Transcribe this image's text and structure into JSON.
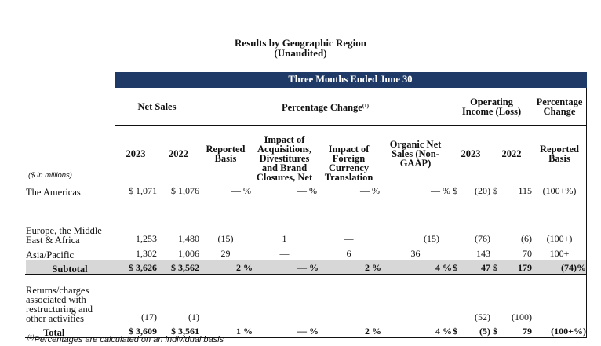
{
  "title": "Results by Geographic Region",
  "subtitle": "(Unaudited)",
  "band_header": "Three Months Ended June 30",
  "group_headers": {
    "net_sales": "Net Sales",
    "pct_change": "Percentage Change",
    "pct_change_note": "(1)",
    "op_income": "Operating Income (Loss)",
    "pct_change2": "Percentage Change"
  },
  "units_label": "($ in millions)",
  "columns": {
    "y2023": "2023",
    "y2022": "2022",
    "reported": "Reported Basis",
    "acq": "Impact of Acquisitions, Divestitures and Brand Closures, Net",
    "fx": "Impact of Foreign Currency Translation",
    "organic": "Organic Net Sales (Non-GAAP)",
    "oi2023": "2023",
    "oi2022": "2022",
    "reported2": "Reported Basis"
  },
  "rows": [
    {
      "label": "The Americas",
      "ns2023": "$ 1,071",
      "ns2022": "$ 1,076",
      "reported": "—",
      "acq": "—",
      "fx": "—",
      "organic": "—",
      "oi2023": "(20)",
      "oi2022": "115",
      "change": "(100+%)"
    },
    {
      "label": "Europe, the Middle East & Africa",
      "ns2023": "1,253",
      "ns2022": "1,480",
      "reported": "(15)",
      "acq": "1",
      "fx": "—",
      "organic": "(15)",
      "oi2023": "(76)",
      "oi2022": "(6)",
      "change": "(100+)"
    },
    {
      "label": "Asia/Pacific",
      "ns2023": "1,302",
      "ns2022": "1,006",
      "reported": "29",
      "acq": "—",
      "fx": "6",
      "organic": "36",
      "oi2023": "143",
      "oi2022": "70",
      "change": "100+"
    }
  ],
  "subtotal": {
    "label": "Subtotal",
    "ns2023": "$ 3,626",
    "ns2022": "$ 3,562",
    "reported": "2",
    "acq": "—",
    "fx": "2",
    "organic": "4",
    "oi2023": "47",
    "oi2022": "179",
    "change": "(74)%"
  },
  "returns": {
    "label": "Returns/charges associated with restructuring and other activities",
    "ns2023": "(17)",
    "ns2022": "(1)",
    "oi2023": "(52)",
    "oi2022": "(100)"
  },
  "total": {
    "label": "Total",
    "ns2023": "$ 3,609",
    "ns2022": "$ 3,561",
    "reported": "1",
    "acq": "—",
    "fx": "2",
    "organic": "4",
    "oi2023": "(5)",
    "oi2022": "79",
    "change": "(100+%)"
  },
  "symbols": {
    "pct": "%",
    "dollar": "$"
  },
  "footnote_marker": "(1)",
  "footnote": "Percentages are calculated on an individual basis"
}
